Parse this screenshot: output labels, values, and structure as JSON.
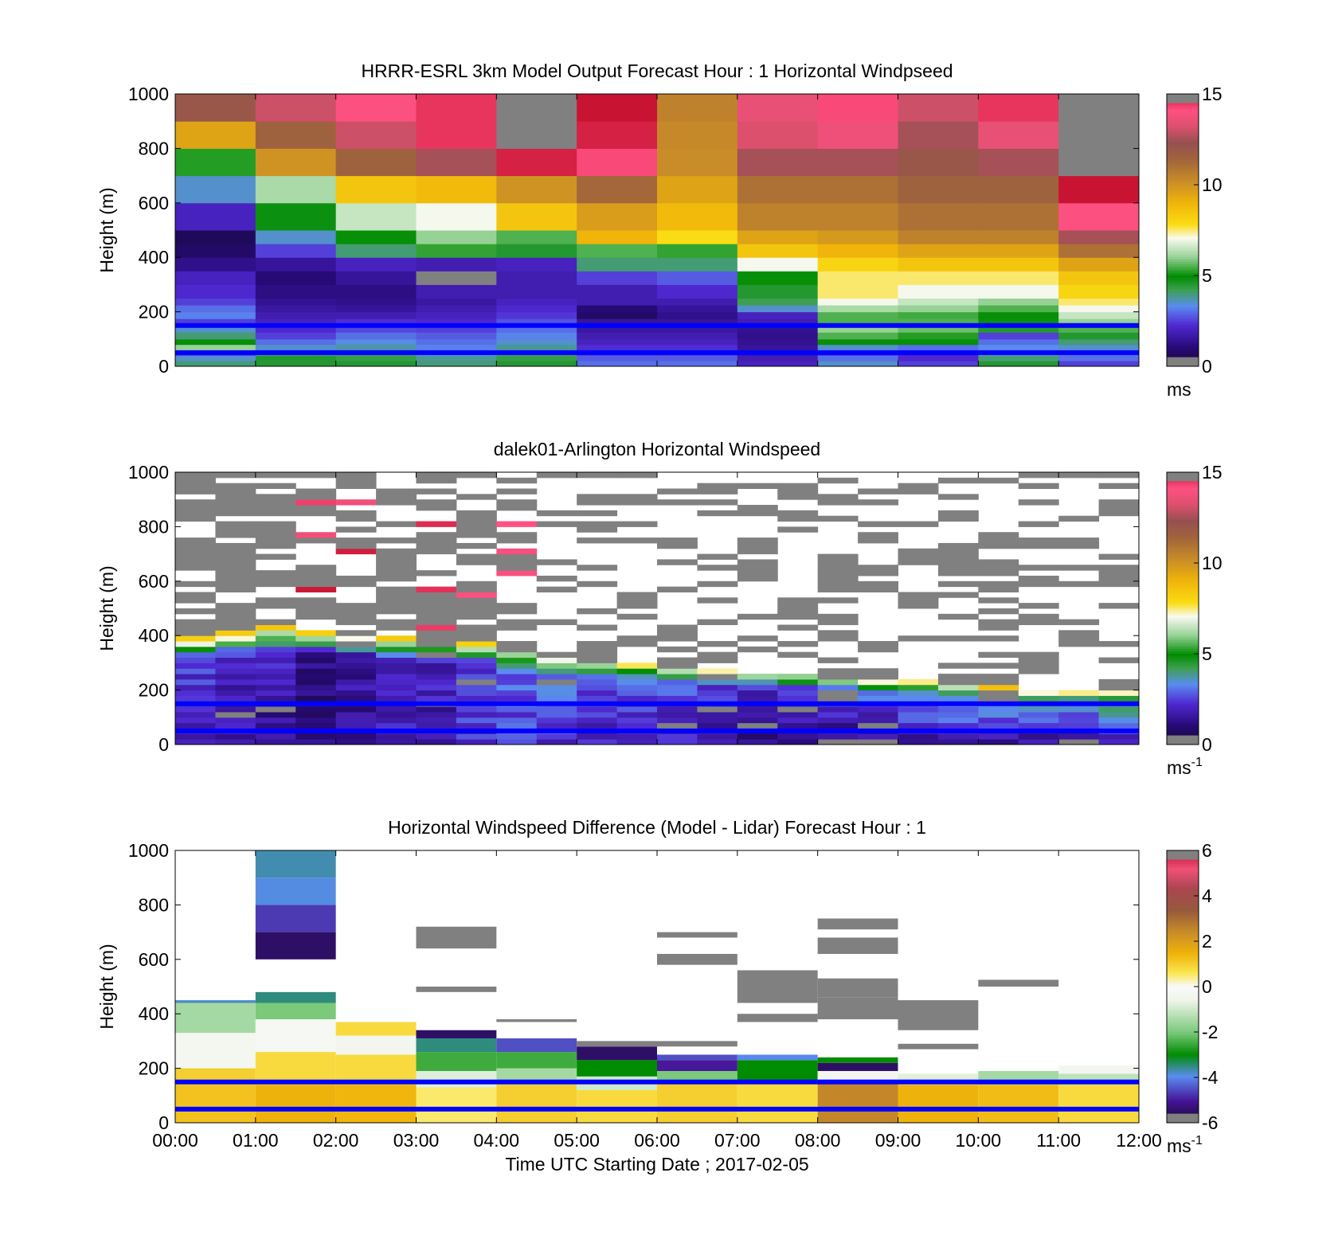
{
  "x_label": "Time UTC  Starting Date ; 2017-02-05",
  "x_ticks": [
    "00:00",
    "01:00",
    "02:00",
    "03:00",
    "04:00",
    "05:00",
    "06:00",
    "07:00",
    "08:00",
    "09:00",
    "10:00",
    "11:00",
    "12:00"
  ],
  "reference_lines_m": [
    150,
    50
  ],
  "colors": {
    "reference_line": "#0000ff",
    "missing": "#808080",
    "background": "#ffffff"
  },
  "chart_data": [
    {
      "type": "heatmap",
      "title": "HRRR-ESRL 3km Model Output   Forecast Hour : 1 Horizontal Windpseed",
      "ylabel": "Height (m)",
      "ylim": [
        0,
        1000
      ],
      "yticks": [
        "0",
        "200",
        "400",
        "600",
        "800",
        "1000"
      ],
      "colorbar": {
        "ticks": [
          "0",
          "5",
          "10",
          "15"
        ],
        "range": [
          0,
          15
        ],
        "unit": "ms",
        "exp": ""
      },
      "layers_m": [
        0,
        20,
        40,
        60,
        80,
        100,
        125,
        150,
        175,
        200,
        225,
        250,
        300,
        350,
        400,
        450,
        500,
        600,
        700,
        800,
        900,
        1000
      ],
      "columns": [
        [
          4,
          3.5,
          2.5,
          6,
          5,
          4,
          3.5,
          2.5,
          3.2,
          3,
          2.5,
          2.2,
          2,
          1.3,
          0.8,
          0.6,
          2,
          3.5,
          5.2,
          9.5,
          12,
          13
        ],
        [
          4.5,
          4.5,
          4,
          3.5,
          3,
          2.5,
          2.2,
          2,
          1.8,
          1.6,
          1.4,
          1.2,
          1,
          1.5,
          2.5,
          3.5,
          4.8,
          6.2,
          10,
          11.5,
          13,
          13.5
        ],
        [
          4.5,
          4.3,
          4,
          3.7,
          3.4,
          3,
          2.6,
          2.3,
          1.8,
          1.5,
          1.3,
          1.2,
          1.5,
          2,
          4,
          5,
          6.5,
          8.5,
          11.5,
          13,
          14,
          14.2
        ],
        [
          4,
          3.8,
          3.4,
          3.2,
          3,
          2.8,
          2.5,
          2.2,
          2,
          1.8,
          1.6,
          1.8,
          -1,
          1.8,
          5.3,
          6,
          7,
          8.8,
          12.5,
          14.5,
          14.5,
          14.5
        ],
        [
          4.5,
          4.3,
          4,
          3.8,
          3.5,
          3.2,
          3,
          2.7,
          2.4,
          2.2,
          2,
          1.8,
          1.8,
          2,
          4.5,
          5.5,
          8.5,
          10,
          14.8,
          -1,
          -1,
          -1
        ],
        [
          3,
          2.8,
          2.5,
          2.3,
          2,
          1.8,
          1.6,
          1.5,
          0.8,
          1,
          1.8,
          1.8,
          2.5,
          4,
          5.5,
          9,
          9.7,
          11.3,
          14.2,
          14.8,
          15,
          15
        ],
        [
          3,
          2.8,
          2.5,
          2.3,
          2,
          1.8,
          1.6,
          1.5,
          1.3,
          1.5,
          1.8,
          2.2,
          2.8,
          4,
          5.3,
          7.8,
          8.8,
          9.5,
          10.2,
          10.3,
          10.5,
          10.5
        ],
        [
          2,
          1.8,
          1.6,
          1.5,
          1.4,
          1.3,
          1.4,
          1.8,
          2,
          3.5,
          4.2,
          4.5,
          5,
          7,
          8.5,
          9.5,
          10.5,
          11,
          12.5,
          13.2,
          13.5,
          13.5
        ],
        [
          3.5,
          3,
          2.5,
          3.5,
          5,
          5.5,
          6,
          5.5,
          5.5,
          6.2,
          7,
          7.5,
          7.5,
          8,
          9,
          9.8,
          10.5,
          11,
          12.5,
          13.7,
          14.2,
          14.2
        ],
        [
          2.5,
          2.2,
          2,
          3,
          5,
          5.2,
          5.7,
          5.5,
          5.4,
          6,
          6.5,
          7,
          7.5,
          8.5,
          9.5,
          10.5,
          11,
          11.5,
          12,
          12.5,
          13,
          13
        ],
        [
          4.5,
          4,
          3.5,
          3.3,
          3,
          2.5,
          4.5,
          4.8,
          5,
          5.5,
          6,
          7,
          7.5,
          8.5,
          9.5,
          10.5,
          11,
          11.5,
          12.5,
          13.5,
          14.5,
          14.5
        ],
        [
          2.5,
          3,
          3,
          3.5,
          4,
          4.5,
          5.5,
          6,
          6.5,
          7,
          7.5,
          8,
          8.5,
          9.5,
          11,
          12.5,
          14,
          15,
          -1,
          -1,
          -1,
          -1
        ]
      ]
    },
    {
      "type": "heatmap",
      "title": "dalek01-Arlington  Horizontal Windspeed",
      "ylabel": "Height (m)",
      "ylim": [
        0,
        1000
      ],
      "yticks": [
        "0",
        "200",
        "400",
        "600",
        "800",
        "1000"
      ],
      "colorbar": {
        "ticks": [
          "0",
          "5",
          "10",
          "15"
        ],
        "range": [
          0,
          15
        ],
        "unit": "ms",
        "exp": "-1"
      },
      "columns": 24,
      "rows": 50,
      "profile_columns": [
        {
          "top": 400,
          "surf": 2,
          "jet": 2.5
        },
        {
          "top": 420,
          "surf": 1.5,
          "jet": 2.5
        },
        {
          "top": 440,
          "surf": 1.2,
          "jet": 2.2
        },
        {
          "top": 420,
          "surf": 1,
          "jet": 1.5
        },
        {
          "top": 410,
          "surf": 1.2,
          "jet": 1.8
        },
        {
          "top": 400,
          "surf": 1.8,
          "jet": 2
        },
        {
          "top": 390,
          "surf": 1.5,
          "jet": 2.2
        },
        {
          "top": 380,
          "surf": 2.2,
          "jet": 2.5
        },
        {
          "top": 350,
          "surf": 2.5,
          "jet": 3
        },
        {
          "top": 320,
          "surf": 2.2,
          "jet": 3.2
        },
        {
          "top": 310,
          "surf": 2,
          "jet": 3
        },
        {
          "top": 300,
          "surf": 2,
          "jet": 3
        },
        {
          "top": 290,
          "surf": 1.8,
          "jet": 3
        },
        {
          "top": 280,
          "surf": 1.5,
          "jet": 2.8
        },
        {
          "top": 270,
          "surf": 1.2,
          "jet": 2.5
        },
        {
          "top": 260,
          "surf": 1,
          "jet": 2.5
        },
        {
          "top": 250,
          "surf": 1,
          "jet": 3
        },
        {
          "top": 240,
          "surf": 1.2,
          "jet": 3.5
        },
        {
          "top": 240,
          "surf": 1.5,
          "jet": 4
        },
        {
          "top": 230,
          "surf": 1.8,
          "jet": 4
        },
        {
          "top": 220,
          "surf": 1.5,
          "jet": 4.5
        },
        {
          "top": 210,
          "surf": 1.2,
          "jet": 4.5
        },
        {
          "top": 210,
          "surf": 1,
          "jet": 4.8
        },
        {
          "top": 210,
          "surf": 1.5,
          "jet": 5
        }
      ]
    },
    {
      "type": "heatmap",
      "title": "Horizontal Windspeed Difference (Model - Lidar) Forecast Hour : 1",
      "ylabel": "Height (m)",
      "ylim": [
        0,
        1000
      ],
      "yticks": [
        "0",
        "200",
        "400",
        "600",
        "800",
        "1000"
      ],
      "colorbar": {
        "ticks": [
          "-6",
          "-4",
          "-2",
          "0",
          "2",
          "4"
        ],
        "top_tick": "6",
        "range": [
          -6,
          6
        ],
        "unit": "ms",
        "exp": "-1"
      },
      "rectangles": [
        {
          "x0": 0,
          "x1": 1,
          "y0": 0,
          "y1": 140,
          "v": 1.2
        },
        {
          "x0": 0,
          "x1": 1,
          "y0": 140,
          "y1": 200,
          "v": 1
        },
        {
          "x0": 0,
          "x1": 1,
          "y0": 200,
          "y1": 330,
          "v": -0.4
        },
        {
          "x0": 0,
          "x1": 1,
          "y0": 330,
          "y1": 440,
          "v": -1.5
        },
        {
          "x0": 0,
          "x1": 1,
          "y0": 440,
          "y1": 450,
          "v": -3.8
        },
        {
          "x0": 1,
          "x1": 2,
          "y0": 0,
          "y1": 140,
          "v": 1.5
        },
        {
          "x0": 1,
          "x1": 2,
          "y0": 140,
          "y1": 260,
          "v": 0.8
        },
        {
          "x0": 1,
          "x1": 2,
          "y0": 260,
          "y1": 380,
          "v": -0.3
        },
        {
          "x0": 1,
          "x1": 2,
          "y0": 380,
          "y1": 440,
          "v": -2
        },
        {
          "x0": 1,
          "x1": 2,
          "y0": 440,
          "y1": 480,
          "v": -3.5
        },
        {
          "x0": 1,
          "x1": 2,
          "y0": 600,
          "y1": 700,
          "v": -5.5
        },
        {
          "x0": 1,
          "x1": 2,
          "y0": 700,
          "y1": 800,
          "v": -4.7
        },
        {
          "x0": 1,
          "x1": 2,
          "y0": 800,
          "y1": 900,
          "v": -3.9
        },
        {
          "x0": 1,
          "x1": 2,
          "y0": 900,
          "y1": 1000,
          "v": -3.7
        },
        {
          "x0": 2,
          "x1": 3,
          "y0": 0,
          "y1": 140,
          "v": 1.4
        },
        {
          "x0": 2,
          "x1": 3,
          "y0": 140,
          "y1": 250,
          "v": 0.8
        },
        {
          "x0": 2,
          "x1": 3,
          "y0": 250,
          "y1": 320,
          "v": -0.5
        },
        {
          "x0": 2,
          "x1": 3,
          "y0": 320,
          "y1": 370,
          "v": 0.8
        },
        {
          "x0": 3,
          "x1": 4,
          "y0": 0,
          "y1": 130,
          "v": 0.5
        },
        {
          "x0": 3,
          "x1": 4,
          "y0": 130,
          "y1": 190,
          "v": -0.8
        },
        {
          "x0": 3,
          "x1": 4,
          "y0": 190,
          "y1": 260,
          "v": -2.5
        },
        {
          "x0": 3,
          "x1": 4,
          "y0": 260,
          "y1": 310,
          "v": -3.5
        },
        {
          "x0": 3,
          "x1": 4,
          "y0": 310,
          "y1": 340,
          "v": -5.5
        },
        {
          "x0": 3,
          "x1": 4,
          "y0": 480,
          "y1": 500,
          "v": 99
        },
        {
          "x0": 3,
          "x1": 4,
          "y0": 640,
          "y1": 720,
          "v": 99
        },
        {
          "x0": 4,
          "x1": 5,
          "y0": 0,
          "y1": 140,
          "v": 1
        },
        {
          "x0": 4,
          "x1": 5,
          "y0": 140,
          "y1": 200,
          "v": -1.5
        },
        {
          "x0": 4,
          "x1": 5,
          "y0": 200,
          "y1": 260,
          "v": -2.5
        },
        {
          "x0": 4,
          "x1": 5,
          "y0": 260,
          "y1": 310,
          "v": -4.5
        },
        {
          "x0": 4,
          "x1": 5,
          "y0": 370,
          "y1": 380,
          "v": 99
        },
        {
          "x0": 5,
          "x1": 6,
          "y0": 0,
          "y1": 120,
          "v": 0.8
        },
        {
          "x0": 5,
          "x1": 6,
          "y0": 120,
          "y1": 170,
          "v": -1
        },
        {
          "x0": 5,
          "x1": 6,
          "y0": 170,
          "y1": 230,
          "v": -3
        },
        {
          "x0": 5,
          "x1": 6,
          "y0": 230,
          "y1": 280,
          "v": -5.5
        },
        {
          "x0": 5,
          "x1": 6,
          "y0": 280,
          "y1": 300,
          "v": 99
        },
        {
          "x0": 6,
          "x1": 7,
          "y0": 0,
          "y1": 150,
          "v": 1
        },
        {
          "x0": 6,
          "x1": 7,
          "y0": 150,
          "y1": 190,
          "v": -2
        },
        {
          "x0": 6,
          "x1": 7,
          "y0": 190,
          "y1": 230,
          "v": -5
        },
        {
          "x0": 6,
          "x1": 7,
          "y0": 230,
          "y1": 250,
          "v": -4.5
        },
        {
          "x0": 6,
          "x1": 7,
          "y0": 280,
          "y1": 300,
          "v": 99
        },
        {
          "x0": 6,
          "x1": 7,
          "y0": 580,
          "y1": 620,
          "v": 99
        },
        {
          "x0": 6,
          "x1": 7,
          "y0": 680,
          "y1": 700,
          "v": 99
        },
        {
          "x0": 7,
          "x1": 8,
          "y0": 0,
          "y1": 150,
          "v": 0.8
        },
        {
          "x0": 7,
          "x1": 8,
          "y0": 150,
          "y1": 230,
          "v": -3
        },
        {
          "x0": 7,
          "x1": 8,
          "y0": 230,
          "y1": 250,
          "v": -4
        },
        {
          "x0": 7,
          "x1": 8,
          "y0": 370,
          "y1": 400,
          "v": 99
        },
        {
          "x0": 7,
          "x1": 8,
          "y0": 440,
          "y1": 560,
          "v": 99
        },
        {
          "x0": 8,
          "x1": 9,
          "y0": 0,
          "y1": 150,
          "v": 2.5
        },
        {
          "x0": 8,
          "x1": 9,
          "y0": 150,
          "y1": 190,
          "v": -0.5
        },
        {
          "x0": 8,
          "x1": 9,
          "y0": 190,
          "y1": 220,
          "v": -5.5
        },
        {
          "x0": 8,
          "x1": 9,
          "y0": 220,
          "y1": 240,
          "v": -3
        },
        {
          "x0": 8,
          "x1": 9,
          "y0": 380,
          "y1": 460,
          "v": 99
        },
        {
          "x0": 8,
          "x1": 9,
          "y0": 460,
          "y1": 530,
          "v": 99
        },
        {
          "x0": 8,
          "x1": 9,
          "y0": 620,
          "y1": 680,
          "v": 99
        },
        {
          "x0": 8,
          "x1": 9,
          "y0": 710,
          "y1": 750,
          "v": 99
        },
        {
          "x0": 9,
          "x1": 10,
          "y0": 0,
          "y1": 140,
          "v": 1.5
        },
        {
          "x0": 9,
          "x1": 10,
          "y0": 140,
          "y1": 180,
          "v": -0.8
        },
        {
          "x0": 9,
          "x1": 10,
          "y0": 270,
          "y1": 290,
          "v": 99
        },
        {
          "x0": 9,
          "x1": 10,
          "y0": 340,
          "y1": 450,
          "v": 99
        },
        {
          "x0": 10,
          "x1": 11,
          "y0": 0,
          "y1": 140,
          "v": 1.3
        },
        {
          "x0": 10,
          "x1": 11,
          "y0": 140,
          "y1": 190,
          "v": -1.5
        },
        {
          "x0": 10,
          "x1": 11,
          "y0": 500,
          "y1": 525,
          "v": 99
        },
        {
          "x0": 11,
          "x1": 12,
          "y0": 0,
          "y1": 140,
          "v": 0.8
        },
        {
          "x0": 11,
          "x1": 12,
          "y0": 140,
          "y1": 180,
          "v": -1.2
        },
        {
          "x0": 11,
          "x1": 12,
          "y0": 180,
          "y1": 210,
          "v": -0.5
        }
      ]
    }
  ]
}
